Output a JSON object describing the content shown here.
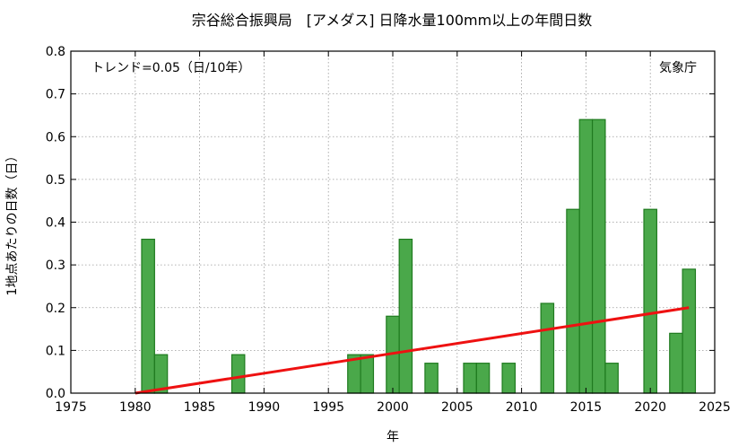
{
  "chart_data": {
    "type": "bar",
    "title": "宗谷総合振興局　[アメダス] 日降水量100mm以上の年間日数",
    "xlabel": "年",
    "ylabel": "1地点あたりの日数（日）",
    "trend_label": "トレンド=0.05（日/10年）",
    "source": "気象庁",
    "xlim": [
      1975,
      2025
    ],
    "ylim": [
      0,
      0.8
    ],
    "xticks": [
      1975,
      1980,
      1985,
      1990,
      1995,
      2000,
      2005,
      2010,
      2015,
      2020,
      2025
    ],
    "yticks": [
      0.0,
      0.1,
      0.2,
      0.3,
      0.4,
      0.5,
      0.6,
      0.7,
      0.8
    ],
    "grid": true,
    "bar_color": "#4aa84a",
    "bar_edge_color": "#1f7a1f",
    "trend_color": "#ee1111",
    "years": [
      1981,
      1982,
      1988,
      1997,
      1998,
      2000,
      2001,
      2003,
      2006,
      2007,
      2009,
      2012,
      2014,
      2015,
      2016,
      2017,
      2020,
      2022,
      2023
    ],
    "values": [
      0.36,
      0.09,
      0.09,
      0.09,
      0.09,
      0.18,
      0.36,
      0.07,
      0.07,
      0.07,
      0.07,
      0.21,
      0.43,
      0.64,
      0.64,
      0.07,
      0.43,
      0.14,
      0.29
    ],
    "trend": {
      "x": [
        1980,
        2023
      ],
      "y": [
        0.0,
        0.2
      ]
    }
  }
}
